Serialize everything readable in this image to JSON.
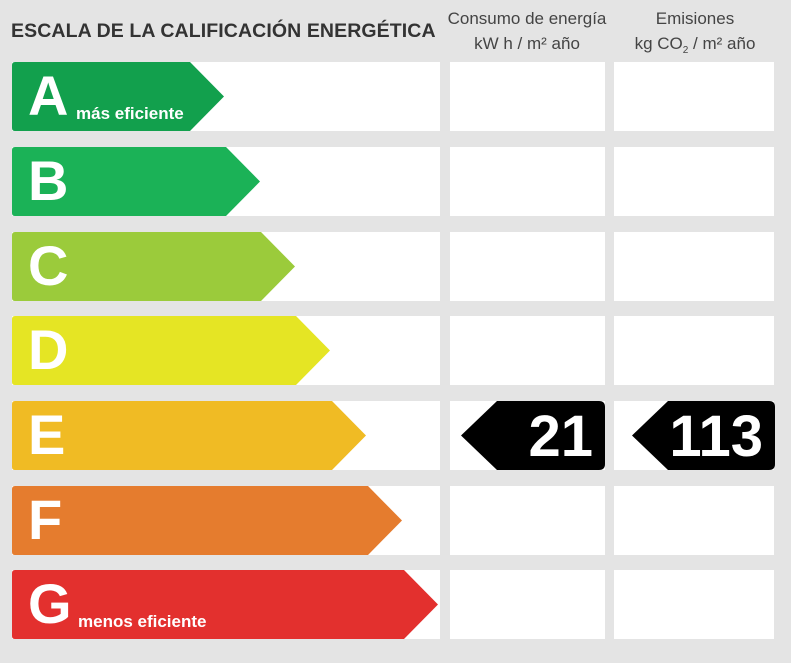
{
  "header": {
    "title": "ESCALA DE LA CALIFICACIÓN ENERGÉTICA",
    "col1_line1": "Consumo de energía",
    "col1_line2": "kW h  / m² año",
    "col2_line1": "Emisiones",
    "col2_unit_a": "kg CO",
    "col2_sub": "2",
    "col2_unit_b": " / m² año"
  },
  "ratings": [
    {
      "letter": "A",
      "label": "más eficiente",
      "color": "#12a04d"
    },
    {
      "letter": "B",
      "label": "",
      "color": "#1bb257"
    },
    {
      "letter": "C",
      "label": "",
      "color": "#9bcb3b"
    },
    {
      "letter": "D",
      "label": "",
      "color": "#e5e524"
    },
    {
      "letter": "E",
      "label": "",
      "color": "#f0bb24"
    },
    {
      "letter": "F",
      "label": "",
      "color": "#e57c2e"
    },
    {
      "letter": "G",
      "label": "menos eficiente",
      "color": "#e3302e"
    }
  ],
  "current": {
    "rating": "E",
    "energy_consumption": "21",
    "emissions": "113",
    "badge_color": "#000000"
  }
}
